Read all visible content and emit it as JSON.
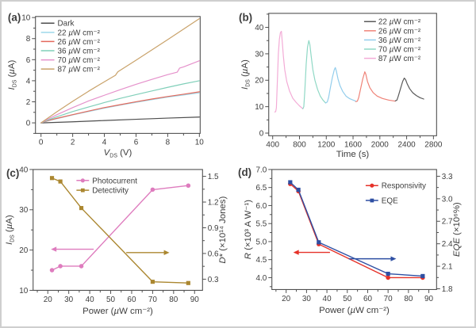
{
  "figure": {
    "background": "#ffffff",
    "border_color": "#cfcfcf",
    "axis_color": "#4f4f4f",
    "text_color": "#3d3d3d"
  },
  "chart_data": [
    {
      "id": "a",
      "panel_label": "(a)",
      "type": "line",
      "title": "",
      "xlabel": "«V»|DS| (V)",
      "ylabel": "«I»|DS| («µ»A)",
      "xlim": [
        -0.35,
        10.05
      ],
      "ylim": [
        -1,
        10.1
      ],
      "xticks": {
        "values": [
          0,
          2,
          4,
          6,
          8,
          10
        ],
        "labels": [
          "0",
          "2",
          "4",
          "6",
          "8",
          "10"
        ],
        "minor": 1
      },
      "yticks": {
        "values": [
          0,
          2,
          4,
          6,
          8,
          10
        ],
        "labels": [
          "0",
          "2",
          "4",
          "6",
          "8",
          "10"
        ],
        "minor": 1
      },
      "box": {
        "l": 43,
        "t": 19,
        "r": 252,
        "b": 168
      },
      "label_pos": [
        8,
        25
      ],
      "xlabel_dy": 28,
      "lw": 1.2,
      "series": [
        {
          "name": "Dark",
          "color": "#4d4d4d",
          "points": [
            [
              0,
              0
            ],
            [
              2,
              0.1
            ],
            [
              4,
              0.22
            ],
            [
              6,
              0.34
            ],
            [
              8,
              0.45
            ],
            [
              10,
              0.55
            ]
          ]
        },
        {
          "name": "22 «µ»W cm⁻²",
          "color": "#9dd8ea",
          "points": [
            [
              0,
              0
            ],
            [
              0.5,
              0.22
            ],
            [
              1,
              0.4
            ],
            [
              2,
              0.75
            ],
            [
              3,
              1.08
            ],
            [
              4,
              1.4
            ],
            [
              5,
              1.68
            ],
            [
              6,
              1.95
            ],
            [
              7,
              2.2
            ],
            [
              8,
              2.45
            ],
            [
              9,
              2.65
            ],
            [
              10,
              2.85
            ]
          ]
        },
        {
          "name": "26 «µ»W cm⁻²",
          "color": "#e4695c",
          "points": [
            [
              0,
              0
            ],
            [
              0.5,
              0.24
            ],
            [
              1,
              0.43
            ],
            [
              2,
              0.78
            ],
            [
              3,
              1.12
            ],
            [
              4,
              1.45
            ],
            [
              5,
              1.73
            ],
            [
              6,
              2.0
            ],
            [
              7,
              2.26
            ],
            [
              8,
              2.5
            ],
            [
              9,
              2.72
            ],
            [
              10,
              2.95
            ]
          ]
        },
        {
          "name": "36 «µ»W cm⁻²",
          "color": "#80cfb9",
          "points": [
            [
              0,
              0
            ],
            [
              0.5,
              0.3
            ],
            [
              1,
              0.57
            ],
            [
              2,
              1.07
            ],
            [
              3,
              1.5
            ],
            [
              4,
              1.93
            ],
            [
              5,
              2.32
            ],
            [
              6,
              2.68
            ],
            [
              7,
              3.03
            ],
            [
              8,
              3.37
            ],
            [
              9,
              3.7
            ],
            [
              10,
              4.0
            ]
          ]
        },
        {
          "name": "70 «µ»W cm⁻²",
          "color": "#e591cb",
          "points": [
            [
              0,
              0
            ],
            [
              0.5,
              0.4
            ],
            [
              1,
              0.77
            ],
            [
              2,
              1.45
            ],
            [
              3,
              2.08
            ],
            [
              4,
              2.62
            ],
            [
              5,
              3.15
            ],
            [
              6,
              3.66
            ],
            [
              7,
              4.13
            ],
            [
              8,
              4.58
            ],
            [
              8.6,
              4.82
            ],
            [
              8.75,
              5.2
            ],
            [
              9,
              5.32
            ],
            [
              10,
              5.9
            ]
          ]
        },
        {
          "name": "87 «µ»W cm⁻²",
          "color": "#c9a26a",
          "points": [
            [
              0,
              0
            ],
            [
              1,
              1.05
            ],
            [
              2,
              2.05
            ],
            [
              3,
              3.0
            ],
            [
              4,
              3.9
            ],
            [
              4.7,
              4.52
            ],
            [
              4.85,
              4.85
            ],
            [
              6,
              5.95
            ],
            [
              7,
              6.93
            ],
            [
              8,
              7.9
            ],
            [
              9,
              8.9
            ],
            [
              10,
              9.9
            ]
          ]
        }
      ],
      "legend": {
        "x": 50,
        "len": 17,
        "text_x": 71,
        "y0": 31,
        "dy": 11.7,
        "order": [
          0,
          1,
          2,
          3,
          4,
          5
        ]
      }
    },
    {
      "id": "b",
      "panel_label": "(b)",
      "type": "line",
      "title": "",
      "xlabel": "Time (s)",
      "ylabel": "«I»|DS| («µ»A)",
      "xlim": [
        341,
        2847
      ],
      "ylim": [
        -1,
        45.3
      ],
      "xticks": {
        "values": [
          400,
          800,
          1200,
          1600,
          2000,
          2400,
          2800
        ],
        "labels": [
          "400",
          "800",
          "1200",
          "1600",
          "2000",
          "2400",
          "2800"
        ],
        "minor": 200
      },
      "yticks": {
        "values": [
          0,
          10,
          20,
          30,
          40
        ],
        "labels": [
          "0",
          "10",
          "20",
          "30",
          "40"
        ],
        "minor": 5
      },
      "box": {
        "l": 39,
        "t": 15,
        "r": 252,
        "b": 171
      },
      "label_pos": [
        1,
        25
      ],
      "xlabel_dy": 27,
      "lw": 1.2,
      "series": [
        {
          "name": "87 «µ»W cm⁻²",
          "color": "#f3abd6",
          "points": [
            [
              430,
              8
            ],
            [
              445,
              8.1
            ],
            [
              455,
              9.5
            ],
            [
              470,
              20
            ],
            [
              485,
              30
            ],
            [
              500,
              35.5
            ],
            [
              515,
              38
            ],
            [
              530,
              38.5
            ],
            [
              545,
              34
            ],
            [
              560,
              29
            ],
            [
              580,
              24
            ],
            [
              610,
              19.5
            ],
            [
              650,
              16
            ],
            [
              700,
              13.2
            ],
            [
              750,
              11.6
            ],
            [
              800,
              10.3
            ],
            [
              850,
              9.2
            ]
          ]
        },
        {
          "name": "70 «µ»W cm⁻²",
          "color": "#8fd8c5",
          "points": [
            [
              850,
              9.2
            ],
            [
              865,
              10
            ],
            [
              880,
              16
            ],
            [
              900,
              26
            ],
            [
              920,
              32.5
            ],
            [
              940,
              35
            ],
            [
              955,
              33.5
            ],
            [
              975,
              29
            ],
            [
              1000,
              24
            ],
            [
              1030,
              20
            ],
            [
              1070,
              16.5
            ],
            [
              1110,
              14
            ],
            [
              1150,
              12.5
            ],
            [
              1190,
              11.4
            ]
          ]
        },
        {
          "name": "36 «µ»W cm⁻²",
          "color": "#92cdec",
          "points": [
            [
              1190,
              11.4
            ],
            [
              1215,
              11.8
            ],
            [
              1235,
              13.5
            ],
            [
              1260,
              17
            ],
            [
              1290,
              21
            ],
            [
              1320,
              24
            ],
            [
              1335,
              24.8
            ],
            [
              1350,
              23.5
            ],
            [
              1375,
              20.5
            ],
            [
              1405,
              18
            ],
            [
              1445,
              15.8
            ],
            [
              1495,
              14
            ],
            [
              1550,
              13
            ],
            [
              1640,
              12.1
            ]
          ]
        },
        {
          "name": "26 «µ»W cm⁻²",
          "color": "#ef8277",
          "points": [
            [
              1640,
              11.9
            ],
            [
              1665,
              12.1
            ],
            [
              1685,
              13.5
            ],
            [
              1710,
              16.5
            ],
            [
              1745,
              20.5
            ],
            [
              1775,
              23.2
            ],
            [
              1790,
              22.3
            ],
            [
              1815,
              19.5
            ],
            [
              1850,
              17.2
            ],
            [
              1900,
              15.3
            ],
            [
              1960,
              14
            ],
            [
              2040,
              13.1
            ],
            [
              2130,
              12.5
            ],
            [
              2230,
              12.1
            ]
          ]
        },
        {
          "name": "22 «µ»W cm⁻²",
          "color": "#5a5a5a",
          "points": [
            [
              2230,
              12.2
            ],
            [
              2255,
              12.5
            ],
            [
              2275,
              14
            ],
            [
              2305,
              16.5
            ],
            [
              2340,
              19.5
            ],
            [
              2365,
              20.8
            ],
            [
              2385,
              20.2
            ],
            [
              2410,
              18.5
            ],
            [
              2445,
              16.8
            ],
            [
              2490,
              15.3
            ],
            [
              2545,
              14.2
            ],
            [
              2600,
              13.4
            ],
            [
              2655,
              12.9
            ]
          ]
        }
      ],
      "legend": {
        "x": 160,
        "len": 15,
        "text_x": 178,
        "y0": 29,
        "dy": 11.7,
        "order": [
          4,
          3,
          2,
          1,
          0
        ]
      }
    },
    {
      "id": "c",
      "panel_label": "(c)",
      "type": "line",
      "title": "",
      "xlabel": "Power («µ»W cm⁻²)",
      "ylabel": "«I»|DS| («µ»A)",
      "y2label": "«D»* (×10¹⁴ Jones)",
      "xlim": [
        13,
        93.8
      ],
      "ylim": [
        10,
        40
      ],
      "y2lim": [
        0.17,
        1.58
      ],
      "xticks": {
        "values": [
          20,
          30,
          40,
          50,
          60,
          70,
          80,
          90
        ],
        "labels": [
          "20",
          "30",
          "40",
          "50",
          "60",
          "70",
          "80",
          "90"
        ],
        "minor": 5
      },
      "yticks": {
        "values": [
          10,
          20,
          30,
          40
        ],
        "labels": [
          "10",
          "20",
          "30",
          "40"
        ],
        "minor": 5
      },
      "y2ticks": {
        "values": [
          0.3,
          0.6,
          0.9,
          1.2,
          1.5
        ],
        "labels": [
          "0.3",
          "0.6",
          "0.9",
          "1.2",
          "1.5"
        ],
        "minor": 0.15
      },
      "box": {
        "l": 40,
        "t": 7,
        "r": 255,
        "b": 161
      },
      "label_pos": [
        6,
        16
      ],
      "xlabel_dy": 30,
      "lw": 1.4,
      "series": [
        {
          "name": "Photocurrent",
          "axis": "y",
          "color": "#de7cbe",
          "marker": "circle",
          "points": [
            [
              22,
              15
            ],
            [
              26,
              16
            ],
            [
              36,
              16
            ],
            [
              70,
              35
            ],
            [
              87,
              36
            ]
          ]
        },
        {
          "name": "Detectivity",
          "axis": "y2",
          "color": "#ab8730",
          "marker": "square",
          "points": [
            [
              22,
              1.48
            ],
            [
              26,
              1.44
            ],
            [
              36,
              1.13
            ],
            [
              70,
              0.27
            ],
            [
              87,
              0.255
            ]
          ]
        }
      ],
      "arrows": [
        {
          "axis": "y",
          "y": 20.2,
          "x1": 41.9,
          "x2": 21.5,
          "color": "#de7cbe"
        },
        {
          "axis": "y2",
          "y": 0.61,
          "x1": 57.4,
          "x2": 78,
          "color": "#ab8730"
        }
      ],
      "legend": {
        "x": 95,
        "len": 16,
        "text_x": 115,
        "y0": 24.5,
        "dy": 12.5,
        "order": [
          0,
          1
        ]
      }
    },
    {
      "id": "d",
      "panel_label": "(d)",
      "type": "line",
      "title": "",
      "xlabel": "Power («µ»W cm⁻²)",
      "ylabel": "«R» (×10³ A W⁻¹)",
      "y2label": "«EQE» (×10⁶%)",
      "xlim": [
        13,
        93.8
      ],
      "ylim": [
        3.67,
        7.0
      ],
      "y2lim": [
        1.79,
        3.39
      ],
      "xticks": {
        "values": [
          20,
          30,
          40,
          50,
          60,
          70,
          80,
          90
        ],
        "labels": [
          "20",
          "30",
          "40",
          "50",
          "60",
          "70",
          "80",
          "90"
        ],
        "minor": 5
      },
      "yticks": {
        "values": [
          4.0,
          4.5,
          5.0,
          5.5,
          6.0,
          6.5,
          7.0
        ],
        "labels": [
          "4.0",
          "4.5",
          "5.0",
          "5.5",
          "6.0",
          "6.5",
          "7.0"
        ],
        "minor": 0.25
      },
      "y2ticks": {
        "values": [
          1.8,
          2.1,
          2.4,
          2.7,
          3.0,
          3.3
        ],
        "labels": [
          "1.8",
          "2.1",
          "2.4",
          "2.7",
          "3.0",
          "3.3"
        ],
        "minor": 0.15
      },
      "box": {
        "l": 43,
        "t": 7,
        "r": 252,
        "b": 160
      },
      "label_pos": [
        0,
        15
      ],
      "xlabel_dy": 30,
      "lw": 1.4,
      "series": [
        {
          "name": "Responsivity",
          "axis": "y",
          "color": "#e63229",
          "marker": "circle",
          "points": [
            [
              22,
              6.6
            ],
            [
              26,
              6.4
            ],
            [
              36,
              4.93
            ],
            [
              70,
              4.0
            ],
            [
              87,
              4.0
            ]
          ]
        },
        {
          "name": "EQE",
          "axis": "y2",
          "color": "#2e4fa3",
          "marker": "square",
          "points": [
            [
              22,
              3.22
            ],
            [
              26,
              3.12
            ],
            [
              36,
              2.42
            ],
            [
              70,
              2.0
            ],
            [
              87,
              1.97
            ]
          ]
        }
      ],
      "arrows": [
        {
          "axis": "y",
          "y": 4.7,
          "x1": 41.5,
          "x2": 23.5,
          "color": "#e63229"
        },
        {
          "axis": "y2",
          "y": 2.2,
          "x1": 50.7,
          "x2": 74,
          "color": "#2e4fa3"
        }
      ],
      "legend": {
        "x": 162,
        "len": 16,
        "text_x": 182,
        "y0": 31,
        "dy": 19,
        "order": [
          0,
          1
        ]
      }
    }
  ]
}
